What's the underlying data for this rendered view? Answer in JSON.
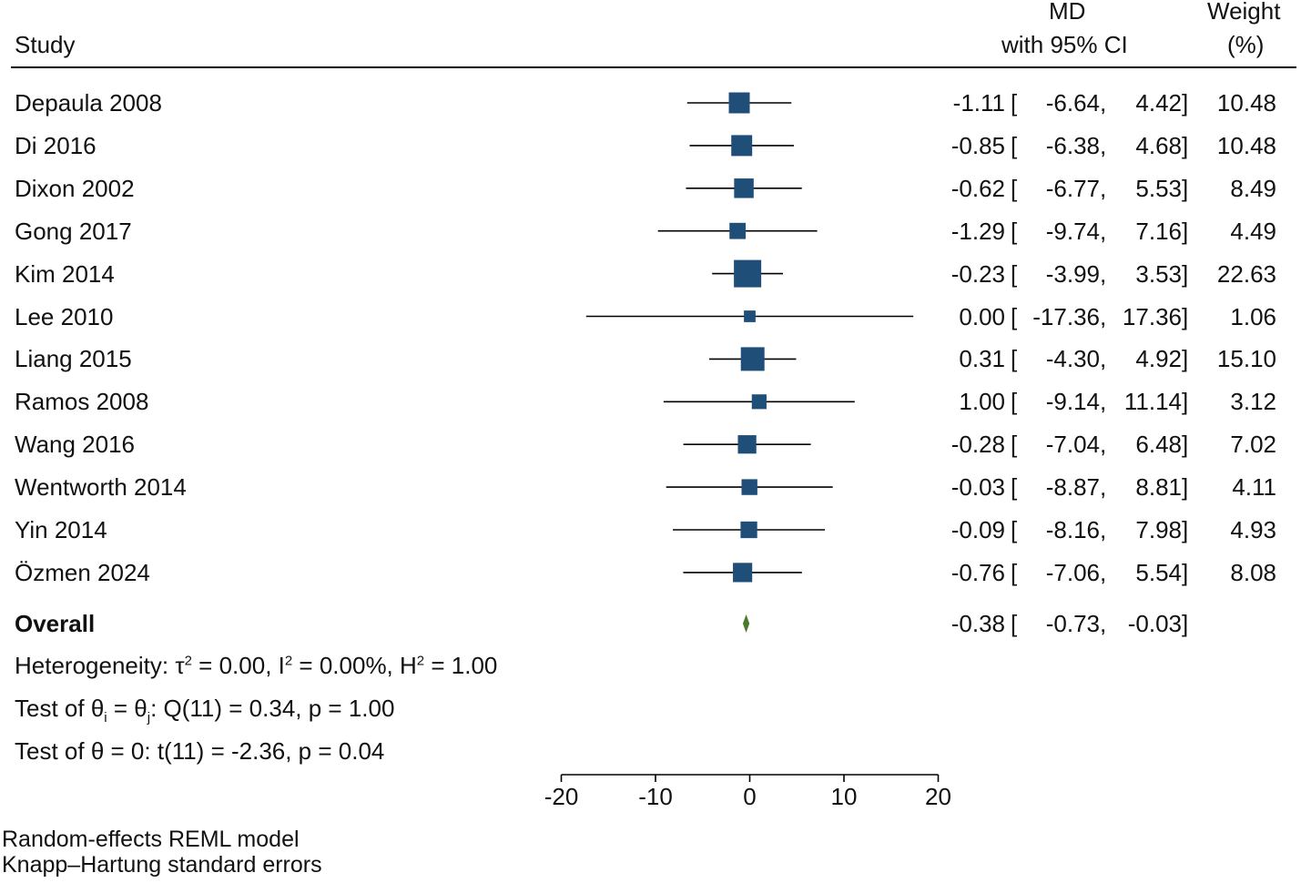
{
  "header": {
    "study": "Study",
    "md_line1": "MD",
    "md_line2": "with 95% CI",
    "weight_line1": "Weight",
    "weight_line2": "(%)"
  },
  "chart_data": {
    "type": "forest",
    "measure": "MD",
    "studies": [
      {
        "name": "Depaula 2008",
        "md": -1.11,
        "lo": -6.64,
        "hi": 4.42,
        "md_text": "-1.11",
        "lo_text": "-6.64",
        "hi_text": "4.42",
        "weight": 10.48,
        "weight_text": "10.48"
      },
      {
        "name": "Di 2016",
        "md": -0.85,
        "lo": -6.38,
        "hi": 4.68,
        "md_text": "-0.85",
        "lo_text": "-6.38",
        "hi_text": "4.68",
        "weight": 10.48,
        "weight_text": "10.48"
      },
      {
        "name": "Dixon 2002",
        "md": -0.62,
        "lo": -6.77,
        "hi": 5.53,
        "md_text": "-0.62",
        "lo_text": "-6.77",
        "hi_text": "5.53",
        "weight": 8.49,
        "weight_text": "8.49"
      },
      {
        "name": "Gong 2017",
        "md": -1.29,
        "lo": -9.74,
        "hi": 7.16,
        "md_text": "-1.29",
        "lo_text": "-9.74",
        "hi_text": "7.16",
        "weight": 4.49,
        "weight_text": "4.49"
      },
      {
        "name": "Kim 2014",
        "md": -0.23,
        "lo": -3.99,
        "hi": 3.53,
        "md_text": "-0.23",
        "lo_text": "-3.99",
        "hi_text": "3.53",
        "weight": 22.63,
        "weight_text": "22.63"
      },
      {
        "name": "Lee 2010",
        "md": 0.0,
        "lo": -17.36,
        "hi": 17.36,
        "md_text": "0.00",
        "lo_text": "-17.36",
        "hi_text": "17.36",
        "weight": 1.06,
        "weight_text": "1.06"
      },
      {
        "name": "Liang 2015",
        "md": 0.31,
        "lo": -4.3,
        "hi": 4.92,
        "md_text": "0.31",
        "lo_text": "-4.30",
        "hi_text": "4.92",
        "weight": 15.1,
        "weight_text": "15.10"
      },
      {
        "name": "Ramos 2008",
        "md": 1.0,
        "lo": -9.14,
        "hi": 11.14,
        "md_text": "1.00",
        "lo_text": "-9.14",
        "hi_text": "11.14",
        "weight": 3.12,
        "weight_text": "3.12"
      },
      {
        "name": "Wang 2016",
        "md": -0.28,
        "lo": -7.04,
        "hi": 6.48,
        "md_text": "-0.28",
        "lo_text": "-7.04",
        "hi_text": "6.48",
        "weight": 7.02,
        "weight_text": "7.02"
      },
      {
        "name": "Wentworth 2014",
        "md": -0.03,
        "lo": -8.87,
        "hi": 8.81,
        "md_text": "-0.03",
        "lo_text": "-8.87",
        "hi_text": "8.81",
        "weight": 4.11,
        "weight_text": "4.11"
      },
      {
        "name": "Yin 2014",
        "md": -0.09,
        "lo": -8.16,
        "hi": 7.98,
        "md_text": "-0.09",
        "lo_text": "-8.16",
        "hi_text": "7.98",
        "weight": 4.93,
        "weight_text": "4.93"
      },
      {
        "name": "Özmen 2024",
        "md": -0.76,
        "lo": -7.06,
        "hi": 5.54,
        "md_text": "-0.76",
        "lo_text": "-7.06",
        "hi_text": "5.54",
        "weight": 8.08,
        "weight_text": "8.08"
      }
    ],
    "overall": {
      "label": "Overall",
      "md": -0.38,
      "lo": -0.73,
      "hi": -0.03,
      "md_text": "-0.38",
      "lo_text": "-0.73",
      "hi_text": "-0.03"
    },
    "x_axis": {
      "min": -20,
      "max": 20,
      "ticks": [
        -20,
        -10,
        0,
        10,
        20
      ],
      "tick_labels": [
        "-20",
        "-10",
        "0",
        "10",
        "20"
      ]
    },
    "colors": {
      "square": "#1f4e79",
      "diamond": "#4a7a2a",
      "line": "#000000"
    }
  },
  "stats": {
    "heterogeneity": {
      "prefix": "Heterogeneity: τ",
      "sup1": "2",
      "p2": " = 0.00, I",
      "sup2": "2",
      "p3": " = 0.00%, H",
      "sup3": "2",
      "p4": " = 1.00"
    },
    "test_groups": {
      "p1": "Test of θ",
      "sub1": "i",
      "p2": " = θ",
      "sub2": "j",
      "p3": ": Q(11) = 0.34, p = 1.00"
    },
    "test_zero": "Test of θ = 0: t(11) = -2.36, p = 0.04"
  },
  "footer": {
    "model": "Random-effects REML model",
    "errors": "Knapp–Hartung standard errors"
  }
}
